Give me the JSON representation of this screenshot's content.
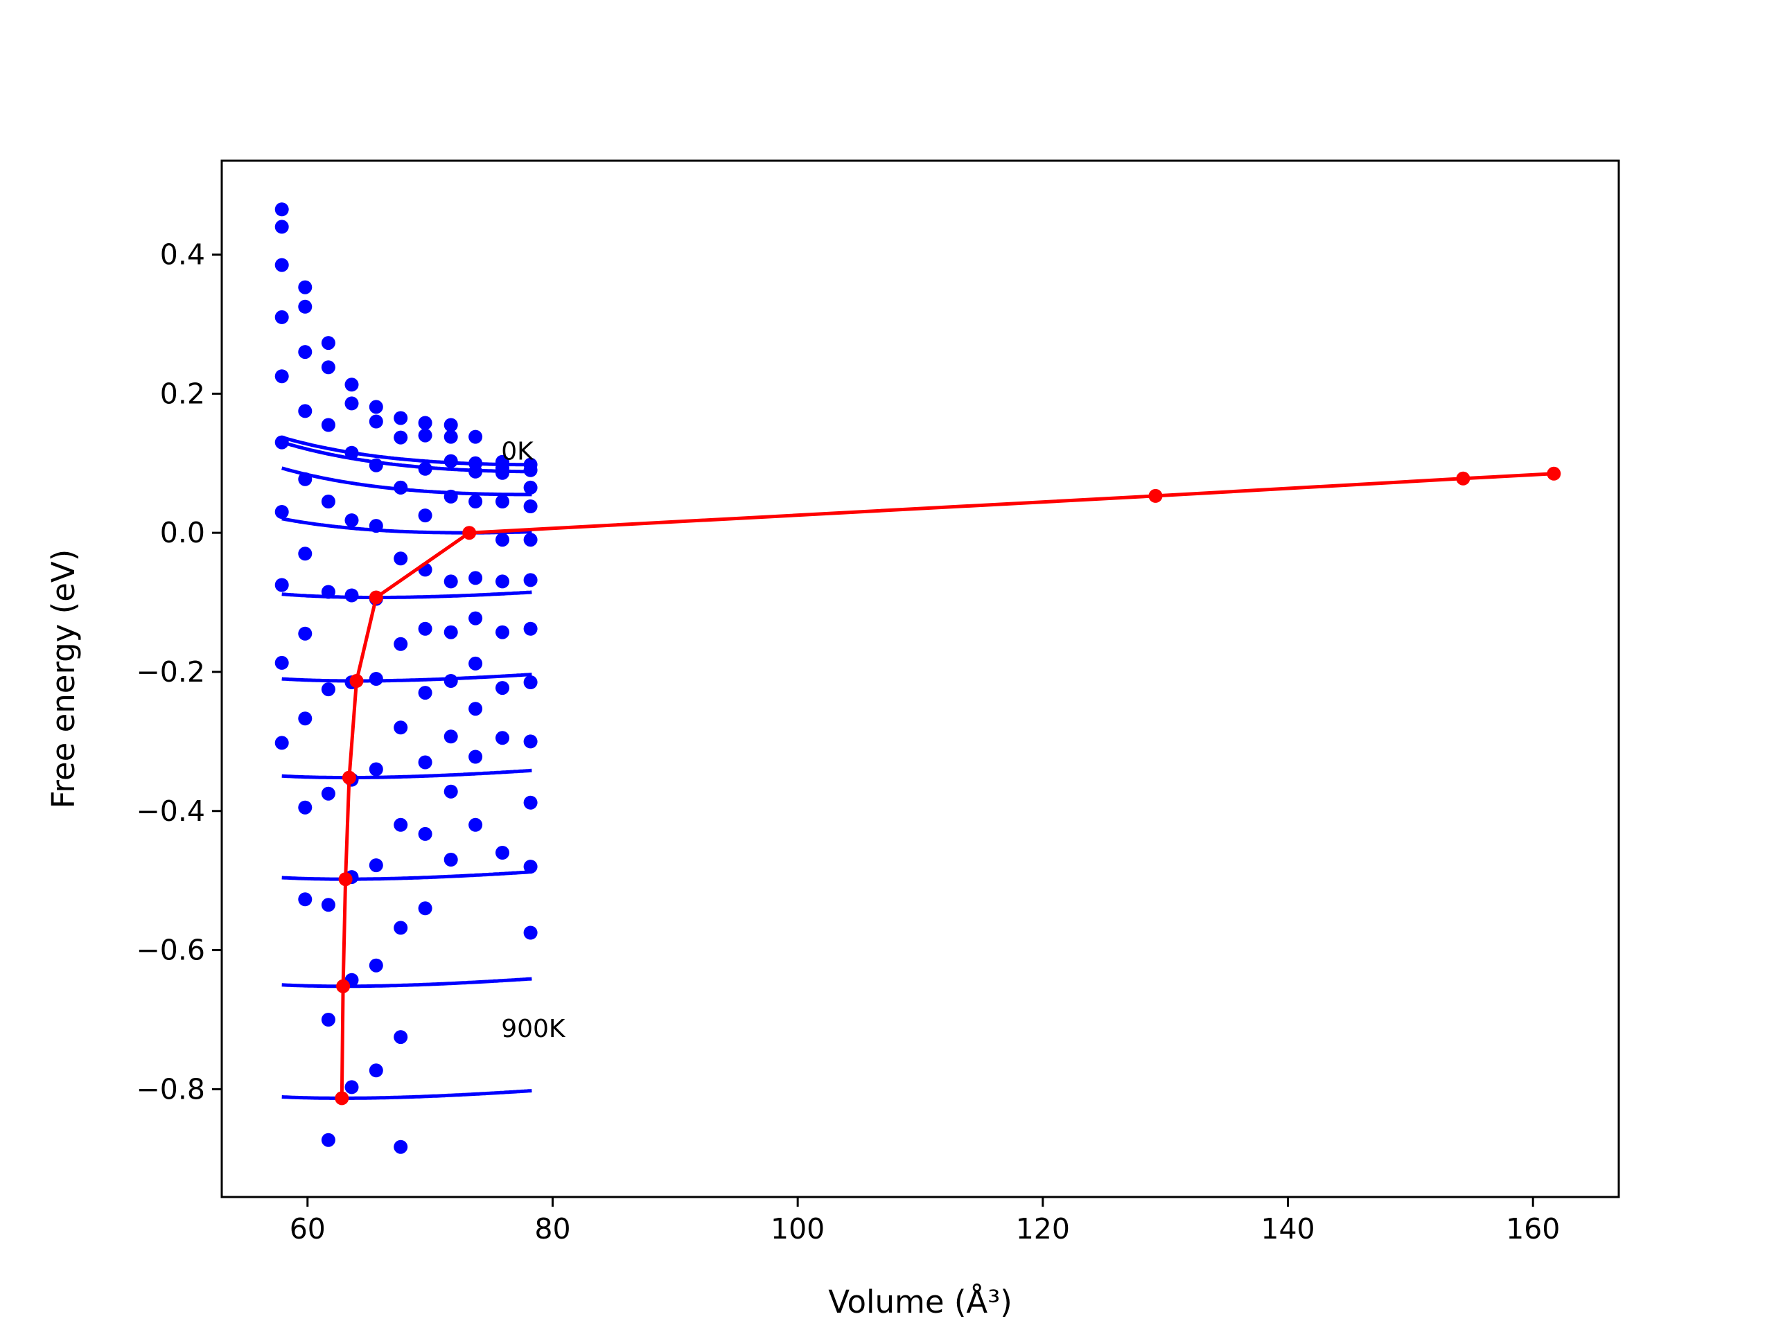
{
  "chart_data": {
    "type": "line",
    "title": "",
    "xlabel": "Volume (Å³)",
    "ylabel": "Free energy (eV)",
    "xlim": [
      53,
      167
    ],
    "ylim": [
      -0.955,
      0.535
    ],
    "xticks": [
      60,
      80,
      100,
      120,
      140,
      160
    ],
    "yticks": [
      -0.8,
      -0.6,
      -0.4,
      -0.2,
      0.0,
      0.2,
      0.4
    ],
    "xtick_labels": [
      "60",
      "80",
      "100",
      "120",
      "140",
      "160"
    ],
    "ytick_labels": [
      "−0.8",
      "−0.6",
      "−0.4",
      "−0.2",
      "0.0",
      "0.2",
      "0.4"
    ],
    "grid": false,
    "annotations": [
      {
        "text": "0K",
        "x": 75.8,
        "y": 0.105
      },
      {
        "text": "900K",
        "x": 75.8,
        "y": -0.725
      }
    ],
    "colors": {
      "fits": "#0000ff",
      "points": "#0000ff",
      "minima": "#ff0000"
    },
    "volumes": [
      57.9,
      59.8,
      61.7,
      63.6,
      65.6,
      67.6,
      69.6,
      71.7,
      73.7,
      75.9,
      78.2
    ],
    "isotherms": [
      {
        "temperature": "0K",
        "points": [
          0.465,
          0.353,
          0.273,
          0.213,
          0.181,
          0.165,
          0.158,
          0.155,
          0.138,
          0.102,
          0.098
        ],
        "fit_min_v": 78.3,
        "fit_min_f": 0.098
      },
      {
        "temperature": "",
        "points": [
          0.44,
          0.325,
          0.238,
          0.186,
          0.16,
          0.137,
          0.14,
          0.138,
          0.1,
          0.086,
          0.09
        ],
        "fit_min_v": 79.0,
        "fit_min_f": 0.088
      },
      {
        "temperature": "",
        "points": [
          0.385,
          0.26,
          0.155,
          0.115,
          0.097,
          0.065,
          0.092,
          0.103,
          0.088,
          0.093,
          0.065
        ],
        "fit_min_v": 78.0,
        "fit_min_f": 0.055
      },
      {
        "temperature": "",
        "points": [
          0.31,
          0.175,
          0.045,
          0.018,
          0.01,
          0.065,
          0.025,
          0.052,
          0.045,
          0.045,
          0.038
        ],
        "fit_min_v": 73.0,
        "fit_min_f": 0.0
      },
      {
        "temperature": "",
        "points": [
          0.225,
          0.077,
          -0.085,
          -0.09,
          -0.095,
          -0.037,
          -0.053,
          -0.07,
          -0.065,
          -0.01,
          -0.01
        ],
        "fit_min_v": 65.6,
        "fit_min_f": -0.093
      },
      {
        "temperature": "",
        "points": [
          0.13,
          -0.03,
          -0.225,
          -0.215,
          -0.21,
          -0.16,
          -0.138,
          -0.143,
          -0.123,
          -0.07,
          -0.068
        ],
        "fit_min_v": 64.0,
        "fit_min_f": -0.213
      },
      {
        "temperature": "",
        "points": [
          0.03,
          -0.145,
          -0.375,
          -0.355,
          -0.34,
          -0.28,
          -0.23,
          -0.213,
          -0.188,
          -0.143,
          -0.138
        ],
        "fit_min_v": 63.3,
        "fit_min_f": -0.352
      },
      {
        "temperature": "",
        "points": [
          -0.075,
          -0.267,
          -0.535,
          -0.495,
          -0.478,
          -0.42,
          -0.33,
          -0.293,
          -0.253,
          -0.223,
          -0.215
        ],
        "fit_min_v": 63.1,
        "fit_min_f": -0.498
      },
      {
        "temperature": "",
        "points": [
          -0.187,
          -0.395,
          -0.7,
          -0.643,
          -0.622,
          -0.568,
          -0.433,
          -0.372,
          -0.322,
          -0.295,
          -0.3
        ],
        "fit_min_v": 62.9,
        "fit_min_f": -0.652
      },
      {
        "temperature": "900K",
        "points": [
          -0.302,
          -0.527,
          -0.873,
          -0.797,
          -0.773,
          -0.883,
          -0.54,
          -0.47,
          -0.42,
          -0.46,
          -0.388
        ],
        "fit_min_v": 62.8,
        "fit_min_f": -0.813
      }
    ],
    "extra_points": [
      {
        "x": 78.2,
        "y": -0.48
      },
      {
        "x": 78.2,
        "y": -0.575
      },
      {
        "x": 67.6,
        "y": -0.725
      }
    ],
    "minima_series": {
      "x": [
        62.8,
        62.9,
        63.1,
        63.4,
        64.0,
        65.6,
        73.2,
        129.2,
        154.3,
        161.7
      ],
      "y": [
        -0.813,
        -0.652,
        -0.498,
        -0.352,
        -0.213,
        -0.093,
        0.0,
        0.053,
        0.078,
        0.085
      ]
    }
  }
}
